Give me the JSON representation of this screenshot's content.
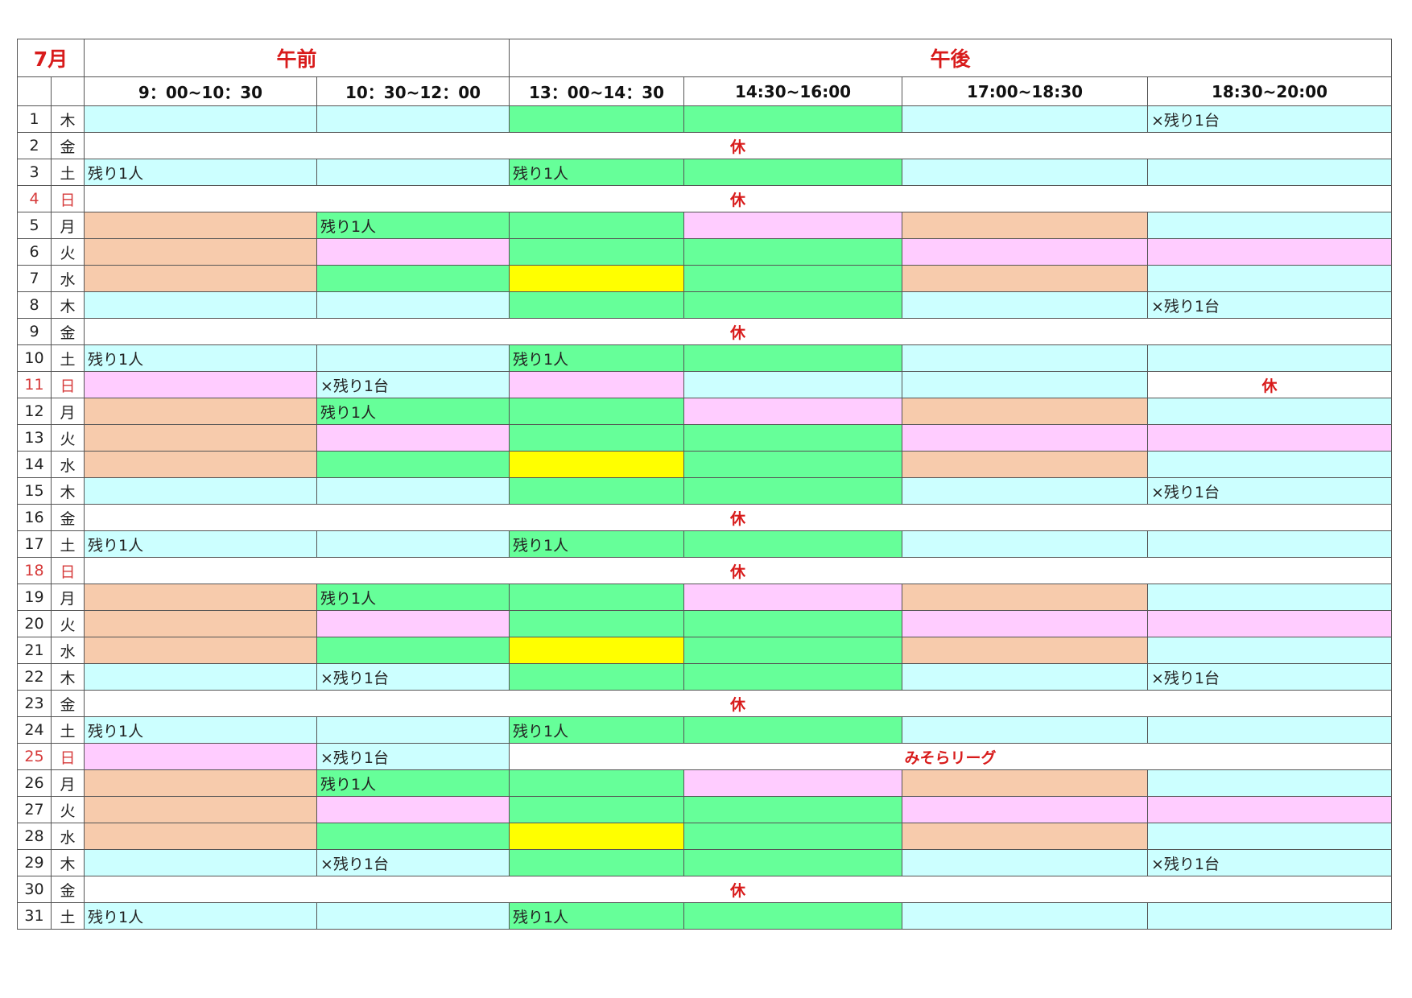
{
  "header": {
    "month": "7月",
    "am_label": "午前",
    "pm_label": "午後",
    "slots": [
      "9：00~10：30",
      "10：30~12：00",
      "13：00~14：30",
      "14:30~16:00",
      "17:00~18:30",
      "18:30~20:00"
    ]
  },
  "colors": {
    "cyan": "#ccffff",
    "green": "#66ff99",
    "pink": "#ffccff",
    "orange": "#f7cbac",
    "yellow": "#ffff00",
    "closed_text": "#d81b1b",
    "sunday_text": "#d63a3a"
  },
  "rows": [
    {
      "day": "1",
      "dow": "木",
      "cells": [
        {
          "c": "cyan",
          "t": ""
        },
        {
          "c": "cyan",
          "t": ""
        },
        {
          "c": "green",
          "t": ""
        },
        {
          "c": "green",
          "t": ""
        },
        {
          "c": "cyan",
          "t": ""
        },
        {
          "c": "cyan",
          "t": "×残り1台"
        }
      ]
    },
    {
      "day": "2",
      "dow": "金",
      "closed": "休"
    },
    {
      "day": "3",
      "dow": "土",
      "cells": [
        {
          "c": "cyan",
          "t": "残り1人"
        },
        {
          "c": "cyan",
          "t": ""
        },
        {
          "c": "green",
          "t": "残り1人"
        },
        {
          "c": "green",
          "t": ""
        },
        {
          "c": "cyan",
          "t": ""
        },
        {
          "c": "cyan",
          "t": ""
        }
      ]
    },
    {
      "day": "4",
      "dow": "日",
      "sun": true,
      "closed": "休"
    },
    {
      "day": "5",
      "dow": "月",
      "cells": [
        {
          "c": "orange",
          "t": ""
        },
        {
          "c": "green",
          "t": "残り1人"
        },
        {
          "c": "green",
          "t": ""
        },
        {
          "c": "pink",
          "t": ""
        },
        {
          "c": "orange",
          "t": ""
        },
        {
          "c": "cyan",
          "t": ""
        }
      ]
    },
    {
      "day": "6",
      "dow": "火",
      "cells": [
        {
          "c": "orange",
          "t": ""
        },
        {
          "c": "pink",
          "t": ""
        },
        {
          "c": "green",
          "t": ""
        },
        {
          "c": "green",
          "t": ""
        },
        {
          "c": "pink",
          "t": ""
        },
        {
          "c": "pink",
          "t": ""
        }
      ]
    },
    {
      "day": "7",
      "dow": "水",
      "cells": [
        {
          "c": "orange",
          "t": ""
        },
        {
          "c": "green",
          "t": ""
        },
        {
          "c": "yellow",
          "t": ""
        },
        {
          "c": "green",
          "t": ""
        },
        {
          "c": "orange",
          "t": ""
        },
        {
          "c": "cyan",
          "t": ""
        }
      ]
    },
    {
      "day": "8",
      "dow": "木",
      "cells": [
        {
          "c": "cyan",
          "t": ""
        },
        {
          "c": "cyan",
          "t": ""
        },
        {
          "c": "green",
          "t": ""
        },
        {
          "c": "green",
          "t": ""
        },
        {
          "c": "cyan",
          "t": ""
        },
        {
          "c": "cyan",
          "t": "×残り1台"
        }
      ]
    },
    {
      "day": "9",
      "dow": "金",
      "closed": "休"
    },
    {
      "day": "10",
      "dow": "土",
      "cells": [
        {
          "c": "cyan",
          "t": "残り1人"
        },
        {
          "c": "cyan",
          "t": ""
        },
        {
          "c": "green",
          "t": "残り1人"
        },
        {
          "c": "green",
          "t": ""
        },
        {
          "c": "cyan",
          "t": ""
        },
        {
          "c": "cyan",
          "t": ""
        }
      ]
    },
    {
      "day": "11",
      "dow": "日",
      "sun": true,
      "cells": [
        {
          "c": "pink",
          "t": ""
        },
        {
          "c": "cyan",
          "t": "×残り1台"
        },
        {
          "c": "pink",
          "t": ""
        },
        {
          "c": "cyan",
          "t": ""
        },
        {
          "c": "cyan",
          "t": ""
        },
        {
          "c": "white",
          "t": "休",
          "closed": true
        }
      ]
    },
    {
      "day": "12",
      "dow": "月",
      "cells": [
        {
          "c": "orange",
          "t": ""
        },
        {
          "c": "green",
          "t": "残り1人"
        },
        {
          "c": "green",
          "t": ""
        },
        {
          "c": "pink",
          "t": ""
        },
        {
          "c": "orange",
          "t": ""
        },
        {
          "c": "cyan",
          "t": ""
        }
      ]
    },
    {
      "day": "13",
      "dow": "火",
      "cells": [
        {
          "c": "orange",
          "t": ""
        },
        {
          "c": "pink",
          "t": ""
        },
        {
          "c": "green",
          "t": ""
        },
        {
          "c": "green",
          "t": ""
        },
        {
          "c": "pink",
          "t": ""
        },
        {
          "c": "pink",
          "t": ""
        }
      ]
    },
    {
      "day": "14",
      "dow": "水",
      "cells": [
        {
          "c": "orange",
          "t": ""
        },
        {
          "c": "green",
          "t": ""
        },
        {
          "c": "yellow",
          "t": ""
        },
        {
          "c": "green",
          "t": ""
        },
        {
          "c": "orange",
          "t": ""
        },
        {
          "c": "cyan",
          "t": ""
        }
      ]
    },
    {
      "day": "15",
      "dow": "木",
      "cells": [
        {
          "c": "cyan",
          "t": ""
        },
        {
          "c": "cyan",
          "t": ""
        },
        {
          "c": "green",
          "t": ""
        },
        {
          "c": "green",
          "t": ""
        },
        {
          "c": "cyan",
          "t": ""
        },
        {
          "c": "cyan",
          "t": "×残り1台"
        }
      ]
    },
    {
      "day": "16",
      "dow": "金",
      "closed": "休"
    },
    {
      "day": "17",
      "dow": "土",
      "cells": [
        {
          "c": "cyan",
          "t": "残り1人"
        },
        {
          "c": "cyan",
          "t": ""
        },
        {
          "c": "green",
          "t": "残り1人"
        },
        {
          "c": "green",
          "t": ""
        },
        {
          "c": "cyan",
          "t": ""
        },
        {
          "c": "cyan",
          "t": ""
        }
      ]
    },
    {
      "day": "18",
      "dow": "日",
      "sun": true,
      "closed": "休"
    },
    {
      "day": "19",
      "dow": "月",
      "cells": [
        {
          "c": "orange",
          "t": ""
        },
        {
          "c": "green",
          "t": "残り1人"
        },
        {
          "c": "green",
          "t": ""
        },
        {
          "c": "pink",
          "t": ""
        },
        {
          "c": "orange",
          "t": ""
        },
        {
          "c": "cyan",
          "t": ""
        }
      ]
    },
    {
      "day": "20",
      "dow": "火",
      "cells": [
        {
          "c": "orange",
          "t": ""
        },
        {
          "c": "pink",
          "t": ""
        },
        {
          "c": "green",
          "t": ""
        },
        {
          "c": "green",
          "t": ""
        },
        {
          "c": "pink",
          "t": ""
        },
        {
          "c": "pink",
          "t": ""
        }
      ]
    },
    {
      "day": "21",
      "dow": "水",
      "cells": [
        {
          "c": "orange",
          "t": ""
        },
        {
          "c": "green",
          "t": ""
        },
        {
          "c": "yellow",
          "t": ""
        },
        {
          "c": "green",
          "t": ""
        },
        {
          "c": "orange",
          "t": ""
        },
        {
          "c": "cyan",
          "t": ""
        }
      ]
    },
    {
      "day": "22",
      "dow": "木",
      "cells": [
        {
          "c": "cyan",
          "t": ""
        },
        {
          "c": "cyan",
          "t": "×残り1台"
        },
        {
          "c": "green",
          "t": ""
        },
        {
          "c": "green",
          "t": ""
        },
        {
          "c": "cyan",
          "t": ""
        },
        {
          "c": "cyan",
          "t": "×残り1台"
        }
      ]
    },
    {
      "day": "23",
      "dow": "金",
      "closed": "休"
    },
    {
      "day": "24",
      "dow": "土",
      "cells": [
        {
          "c": "cyan",
          "t": "残り1人"
        },
        {
          "c": "cyan",
          "t": ""
        },
        {
          "c": "green",
          "t": "残り1人"
        },
        {
          "c": "green",
          "t": ""
        },
        {
          "c": "cyan",
          "t": ""
        },
        {
          "c": "cyan",
          "t": ""
        }
      ]
    },
    {
      "day": "25",
      "dow": "日",
      "sun": true,
      "cells": [
        {
          "c": "pink",
          "t": ""
        },
        {
          "c": "cyan",
          "t": "×残り1台"
        },
        {
          "c": "white",
          "t": "みそらリーグ",
          "span": 4,
          "closed": true
        }
      ]
    },
    {
      "day": "26",
      "dow": "月",
      "cells": [
        {
          "c": "orange",
          "t": ""
        },
        {
          "c": "green",
          "t": "残り1人"
        },
        {
          "c": "green",
          "t": ""
        },
        {
          "c": "pink",
          "t": ""
        },
        {
          "c": "orange",
          "t": ""
        },
        {
          "c": "cyan",
          "t": ""
        }
      ]
    },
    {
      "day": "27",
      "dow": "火",
      "cells": [
        {
          "c": "orange",
          "t": ""
        },
        {
          "c": "pink",
          "t": ""
        },
        {
          "c": "green",
          "t": ""
        },
        {
          "c": "green",
          "t": ""
        },
        {
          "c": "pink",
          "t": ""
        },
        {
          "c": "pink",
          "t": ""
        }
      ]
    },
    {
      "day": "28",
      "dow": "水",
      "cells": [
        {
          "c": "orange",
          "t": ""
        },
        {
          "c": "green",
          "t": ""
        },
        {
          "c": "yellow",
          "t": ""
        },
        {
          "c": "green",
          "t": ""
        },
        {
          "c": "orange",
          "t": ""
        },
        {
          "c": "cyan",
          "t": ""
        }
      ]
    },
    {
      "day": "29",
      "dow": "木",
      "cells": [
        {
          "c": "cyan",
          "t": ""
        },
        {
          "c": "cyan",
          "t": "×残り1台"
        },
        {
          "c": "green",
          "t": ""
        },
        {
          "c": "green",
          "t": ""
        },
        {
          "c": "cyan",
          "t": ""
        },
        {
          "c": "cyan",
          "t": "×残り1台"
        }
      ]
    },
    {
      "day": "30",
      "dow": "金",
      "closed": "休"
    },
    {
      "day": "31",
      "dow": "土",
      "cells": [
        {
          "c": "cyan",
          "t": "残り1人"
        },
        {
          "c": "cyan",
          "t": ""
        },
        {
          "c": "green",
          "t": "残り1人"
        },
        {
          "c": "green",
          "t": ""
        },
        {
          "c": "cyan",
          "t": ""
        },
        {
          "c": "cyan",
          "t": ""
        }
      ]
    }
  ]
}
